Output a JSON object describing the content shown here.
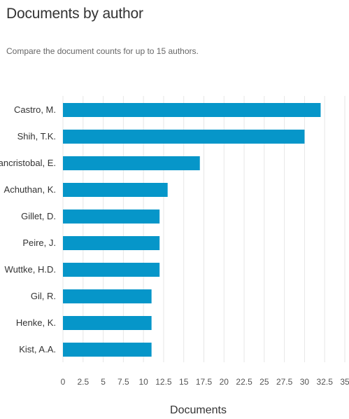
{
  "header": {
    "title": "Documents by author",
    "subtitle": "Compare the document counts for up to 15 authors."
  },
  "colors": {
    "bar": "#0696c9",
    "grid": "#e6e6e6",
    "text": "#333333",
    "tick": "#555555"
  },
  "chart_data": {
    "type": "bar",
    "orientation": "horizontal",
    "categories": [
      "Castro, M.",
      "Shih, T.K.",
      "Sancristobal, E.",
      "Achuthan, K.",
      "Gillet, D.",
      "Peire, J.",
      "Wuttke, H.D.",
      "Gil, R.",
      "Henke, K.",
      "Kist, A.A."
    ],
    "values": [
      32,
      30,
      17,
      13,
      12,
      12,
      12,
      11,
      11,
      11
    ],
    "xlabel": "Documents",
    "ylabel": "",
    "xlim": [
      0,
      35
    ],
    "xticks": [
      0,
      2.5,
      5,
      7.5,
      10,
      12.5,
      15,
      17.5,
      20,
      22.5,
      25,
      27.5,
      30,
      32.5,
      35
    ],
    "grid": true,
    "legend": "none"
  }
}
